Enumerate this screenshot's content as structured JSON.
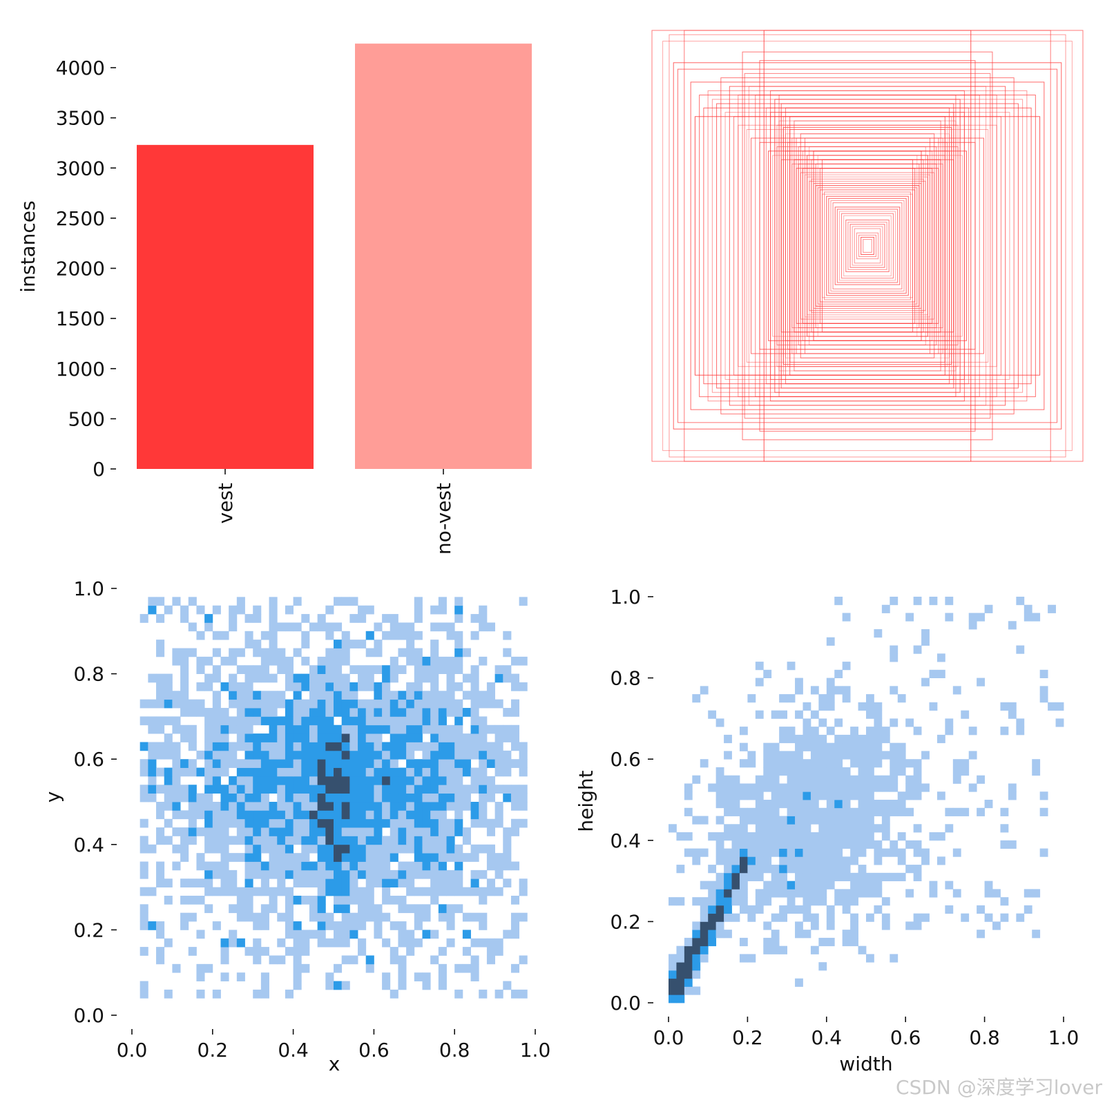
{
  "watermark": "CSDN @深度学习lover",
  "chart_data": [
    {
      "type": "bar",
      "categories": [
        "vest",
        "no-vest"
      ],
      "values": [
        3230,
        4240
      ],
      "colors": [
        "#ff3838",
        "#ff9d97"
      ],
      "ylabel": "instances",
      "xlabel": "",
      "ylim": [
        0,
        4400
      ],
      "yticks": [
        "0",
        "500",
        "1000",
        "1500",
        "2000",
        "2500",
        "3000",
        "3500",
        "4000"
      ],
      "yticks_values": [
        0,
        500,
        1000,
        1500,
        2000,
        2500,
        3000,
        3500,
        4000
      ],
      "grid": false
    },
    {
      "type": "rectangles",
      "description_note": "",
      "color": "#ff3838",
      "boxes_wh": [
        [
          1.0,
          1.0
        ],
        [
          0.92,
          0.98
        ],
        [
          0.85,
          1.0
        ],
        [
          0.48,
          1.0
        ],
        [
          0.58,
          0.9
        ],
        [
          0.5,
          0.86
        ],
        [
          0.95,
          0.95
        ],
        [
          0.9,
          0.85
        ],
        [
          0.88,
          0.82
        ],
        [
          0.82,
          0.76
        ],
        [
          0.78,
          0.7
        ],
        [
          0.74,
          0.72
        ],
        [
          0.7,
          0.66
        ],
        [
          0.66,
          0.62
        ],
        [
          0.62,
          0.6
        ],
        [
          0.6,
          0.56
        ],
        [
          0.56,
          0.54
        ],
        [
          0.54,
          0.5
        ],
        [
          0.5,
          0.48
        ],
        [
          0.46,
          0.44
        ],
        [
          0.44,
          0.42
        ],
        [
          0.42,
          0.46
        ],
        [
          0.4,
          0.4
        ],
        [
          0.38,
          0.44
        ],
        [
          0.36,
          0.42
        ],
        [
          0.35,
          0.38
        ],
        [
          0.34,
          0.4
        ],
        [
          0.33,
          0.36
        ],
        [
          0.32,
          0.38
        ],
        [
          0.31,
          0.34
        ],
        [
          0.3,
          0.36
        ],
        [
          0.29,
          0.33
        ],
        [
          0.28,
          0.32
        ],
        [
          0.27,
          0.3
        ],
        [
          0.26,
          0.31
        ],
        [
          0.25,
          0.29
        ],
        [
          0.24,
          0.28
        ],
        [
          0.23,
          0.27
        ],
        [
          0.22,
          0.26
        ],
        [
          0.21,
          0.24
        ],
        [
          0.2,
          0.25
        ],
        [
          0.19,
          0.23
        ],
        [
          0.18,
          0.22
        ],
        [
          0.17,
          0.21
        ],
        [
          0.16,
          0.2
        ],
        [
          0.15,
          0.18
        ],
        [
          0.14,
          0.17
        ],
        [
          0.13,
          0.16
        ],
        [
          0.12,
          0.15
        ],
        [
          0.11,
          0.14
        ],
        [
          0.1,
          0.12
        ],
        [
          0.09,
          0.11
        ],
        [
          0.08,
          0.1
        ],
        [
          0.07,
          0.09
        ],
        [
          0.06,
          0.08
        ],
        [
          0.05,
          0.06
        ],
        [
          0.04,
          0.05
        ],
        [
          0.03,
          0.04
        ],
        [
          0.02,
          0.03
        ],
        [
          0.37,
          0.56
        ],
        [
          0.39,
          0.6
        ],
        [
          0.41,
          0.58
        ],
        [
          0.36,
          0.54
        ],
        [
          0.38,
          0.52
        ],
        [
          0.4,
          0.62
        ],
        [
          0.42,
          0.56
        ],
        [
          0.35,
          0.5
        ],
        [
          0.37,
          0.48
        ],
        [
          0.39,
          0.55
        ],
        [
          0.33,
          0.5
        ],
        [
          0.34,
          0.58
        ],
        [
          0.36,
          0.6
        ],
        [
          0.38,
          0.64
        ],
        [
          0.4,
          0.66
        ],
        [
          0.43,
          0.6
        ],
        [
          0.45,
          0.62
        ],
        [
          0.47,
          0.64
        ],
        [
          0.32,
          0.46
        ],
        [
          0.31,
          0.52
        ],
        [
          0.3,
          0.44
        ],
        [
          0.29,
          0.5
        ],
        [
          0.28,
          0.42
        ],
        [
          0.27,
          0.46
        ],
        [
          0.26,
          0.4
        ],
        [
          0.25,
          0.44
        ],
        [
          0.24,
          0.38
        ],
        [
          0.23,
          0.42
        ],
        [
          0.22,
          0.36
        ],
        [
          0.21,
          0.4
        ],
        [
          0.6,
          0.7
        ],
        [
          0.64,
          0.74
        ],
        [
          0.68,
          0.78
        ],
        [
          0.72,
          0.68
        ],
        [
          0.76,
          0.64
        ],
        [
          0.8,
          0.6
        ],
        [
          0.52,
          0.7
        ],
        [
          0.55,
          0.74
        ],
        [
          0.57,
          0.8
        ],
        [
          0.45,
          0.72
        ],
        [
          0.43,
          0.68
        ],
        [
          0.41,
          0.7
        ]
      ]
    },
    {
      "type": "heatmap",
      "xlabel": "x",
      "ylabel": "y",
      "xlim": [
        0,
        1
      ],
      "ylim": [
        0,
        1
      ],
      "bins": 50,
      "xticks": [
        "0.0",
        "0.2",
        "0.4",
        "0.6",
        "0.8",
        "1.0"
      ],
      "yticks": [
        "0.0",
        "0.2",
        "0.4",
        "0.6",
        "0.8",
        "1.0"
      ],
      "tick_values": [
        0,
        0.2,
        0.4,
        0.6,
        0.8,
        1.0
      ],
      "distribution": {
        "x_range": [
          0.02,
          0.98
        ],
        "y_range": [
          0.04,
          0.98
        ],
        "core": {
          "x": 0.5,
          "y": 0.5,
          "sx": 0.03,
          "sy": 0.14
        },
        "body": {
          "x": 0.5,
          "y": 0.55,
          "sx": 0.23,
          "sy": 0.16
        }
      },
      "colors": [
        "#a6c8f0",
        "#2c9be8",
        "#36506e"
      ]
    },
    {
      "type": "heatmap",
      "xlabel": "width",
      "ylabel": "height",
      "xlim": [
        0,
        1
      ],
      "ylim": [
        0,
        1
      ],
      "bins": 50,
      "xticks": [
        "0.0",
        "0.2",
        "0.4",
        "0.6",
        "0.8",
        "1.0"
      ],
      "yticks": [
        "0.0",
        "0.2",
        "0.4",
        "0.6",
        "0.8",
        "1.0"
      ],
      "tick_values": [
        0,
        0.2,
        0.4,
        0.6,
        0.8,
        1.0
      ],
      "distribution": {
        "x_range": [
          0.0,
          1.0
        ],
        "y_range": [
          0.0,
          1.0
        ],
        "core": {
          "slope": 1.75,
          "x_end": 0.2
        },
        "cloud": {
          "x": 0.38,
          "y": 0.48,
          "sx": 0.14,
          "sy": 0.14
        }
      },
      "colors": [
        "#a6c8f0",
        "#2c9be8",
        "#36506e"
      ]
    }
  ]
}
